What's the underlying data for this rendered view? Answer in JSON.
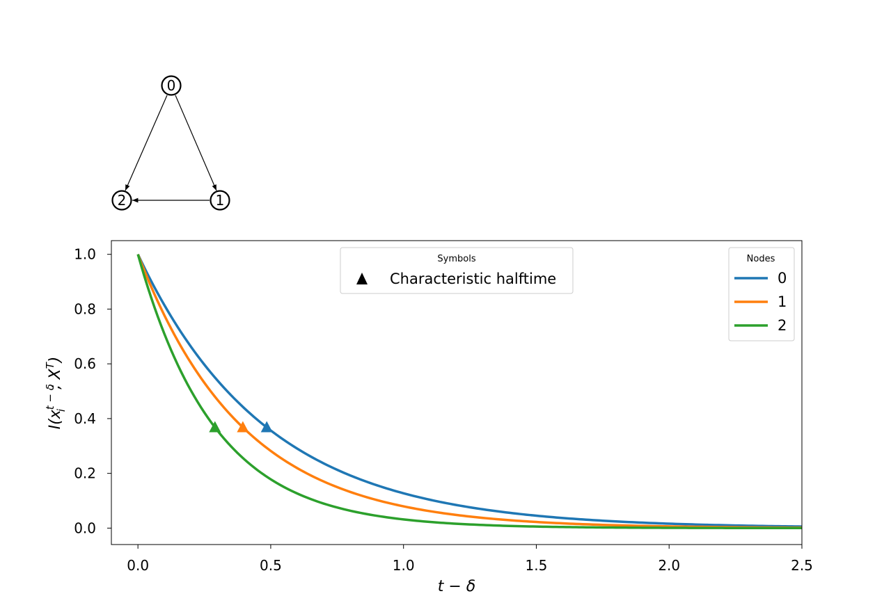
{
  "graph": {
    "nodes": [
      {
        "id": "0",
        "label": "0"
      },
      {
        "id": "1",
        "label": "1"
      },
      {
        "id": "2",
        "label": "2"
      }
    ],
    "edges": [
      {
        "from": "0",
        "to": "1"
      },
      {
        "from": "0",
        "to": "2"
      },
      {
        "from": "1",
        "to": "2"
      }
    ]
  },
  "chart_data": {
    "type": "line",
    "xlabel": "t − δ",
    "ylabel": "I(x_i^{t−δ}; X^T)",
    "xlim": [
      -0.1,
      2.5
    ],
    "ylim": [
      -0.06,
      1.05
    ],
    "xticks": [
      0.0,
      0.5,
      1.0,
      1.5,
      2.0,
      2.5
    ],
    "yticks": [
      0.0,
      0.2,
      0.4,
      0.6,
      0.8,
      1.0
    ],
    "xtick_labels": [
      "0.0",
      "0.5",
      "1.0",
      "1.5",
      "2.0",
      "2.5"
    ],
    "ytick_labels": [
      "0.0",
      "0.2",
      "0.4",
      "0.6",
      "0.8",
      "1.0"
    ],
    "grid": false,
    "series": [
      {
        "name": "0",
        "color": "#1f77b4",
        "decay_time": 0.485,
        "x": [
          0,
          0.1,
          0.2,
          0.3,
          0.4,
          0.485,
          0.6,
          0.8,
          1.0,
          1.25,
          1.5,
          1.75,
          2.0,
          2.25,
          2.5
        ],
        "y": [
          1.0,
          0.814,
          0.662,
          0.539,
          0.438,
          0.368,
          0.29,
          0.192,
          0.127,
          0.076,
          0.045,
          0.027,
          0.016,
          0.01,
          0.006
        ],
        "halftime": {
          "x": 0.485,
          "y": 0.368
        }
      },
      {
        "name": "1",
        "color": "#ff7f0e",
        "decay_time": 0.395,
        "x": [
          0,
          0.1,
          0.2,
          0.3,
          0.395,
          0.5,
          0.6,
          0.8,
          1.0,
          1.25,
          1.5,
          1.75,
          2.0,
          2.25,
          2.5
        ],
        "y": [
          1.0,
          0.776,
          0.603,
          0.468,
          0.368,
          0.282,
          0.219,
          0.132,
          0.08,
          0.042,
          0.022,
          0.012,
          0.006,
          0.003,
          0.002
        ],
        "halftime": {
          "x": 0.395,
          "y": 0.368
        }
      },
      {
        "name": "2",
        "color": "#2ca02c",
        "decay_time": 0.29,
        "x": [
          0,
          0.1,
          0.2,
          0.29,
          0.4,
          0.5,
          0.6,
          0.8,
          1.0,
          1.25,
          1.5,
          1.75,
          2.0,
          2.25,
          2.5
        ],
        "y": [
          1.0,
          0.708,
          0.502,
          0.368,
          0.252,
          0.178,
          0.126,
          0.063,
          0.032,
          0.013,
          0.006,
          0.002,
          0.001,
          0.0004,
          0.0002
        ],
        "halftime": {
          "x": 0.29,
          "y": 0.368
        }
      }
    ],
    "legends": [
      {
        "title": "Symbols",
        "placement": "upper-center",
        "entries": [
          {
            "marker": "triangle",
            "label": "Characteristic halftime"
          }
        ]
      },
      {
        "title": "Nodes",
        "placement": "upper-right",
        "entries": [
          {
            "label": "0"
          },
          {
            "label": "1"
          },
          {
            "label": "2"
          }
        ]
      }
    ]
  }
}
